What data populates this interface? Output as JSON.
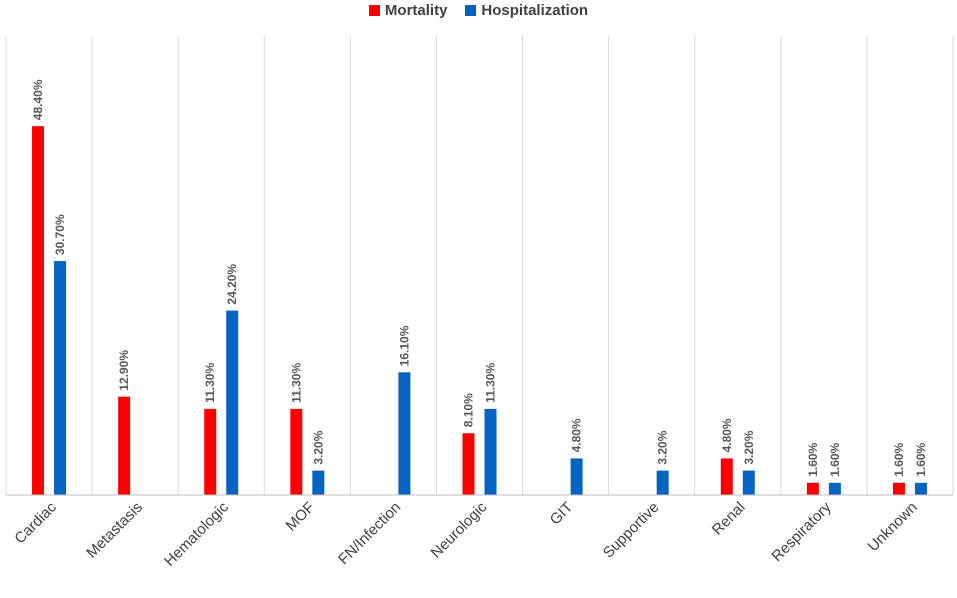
{
  "chart_data": {
    "type": "bar",
    "title": "",
    "xlabel": "",
    "ylabel": "",
    "ylim": [
      0,
      50
    ],
    "grid": "vertical category separators",
    "legend_position": "top-center",
    "categories": [
      "Cardiac",
      "Metastasis",
      "Hematologic",
      "MOF",
      "FN/Infection",
      "Neurologic",
      "GIT",
      "Supportive",
      "Renal",
      "Respiratory",
      "Unknown"
    ],
    "series": [
      {
        "name": "Mortality",
        "color": "#ff0000",
        "values": [
          48.4,
          12.9,
          11.3,
          11.3,
          null,
          8.1,
          null,
          null,
          4.8,
          1.6,
          1.6
        ],
        "labels": [
          "48.40%",
          "12.90%",
          "11.30%",
          "11.30%",
          null,
          "8.10%",
          null,
          null,
          "4.80%",
          "1.60%",
          "1.60%"
        ]
      },
      {
        "name": "Hospitalization",
        "color": "#0563c1",
        "values": [
          30.7,
          null,
          24.2,
          3.2,
          16.1,
          11.3,
          4.8,
          3.2,
          3.2,
          1.6,
          1.6
        ],
        "labels": [
          "30.70%",
          null,
          "24.20%",
          "3.20%",
          "16.10%",
          "11.30%",
          "4.80%",
          "3.20%",
          "3.20%",
          "1.60%",
          "1.60%"
        ]
      }
    ]
  }
}
